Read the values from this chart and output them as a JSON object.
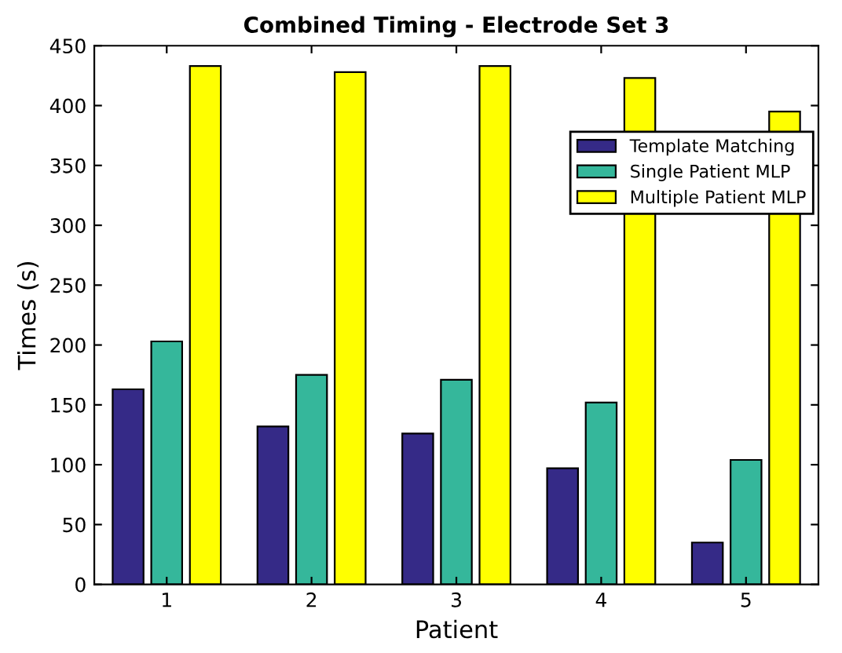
{
  "chart_data": {
    "type": "bar",
    "title": "Combined Timing - Electrode Set 3",
    "xlabel": "Patient",
    "ylabel": "Times (s)",
    "categories": [
      "1",
      "2",
      "3",
      "4",
      "5"
    ],
    "series": [
      {
        "name": "Template Matching",
        "color": "#352a87",
        "values": [
          163,
          132,
          126,
          97,
          35
        ]
      },
      {
        "name": "Single Patient MLP",
        "color": "#35b79b",
        "values": [
          203,
          175,
          171,
          152,
          104
        ]
      },
      {
        "name": "Multiple Patient MLP",
        "color": "#ffff00",
        "values": [
          433,
          428,
          433,
          423,
          395
        ]
      }
    ],
    "ylim": [
      0,
      450
    ],
    "yticks": [
      0,
      50,
      100,
      150,
      200,
      250,
      300,
      350,
      400,
      450
    ],
    "grid": false,
    "legend": "top right"
  }
}
